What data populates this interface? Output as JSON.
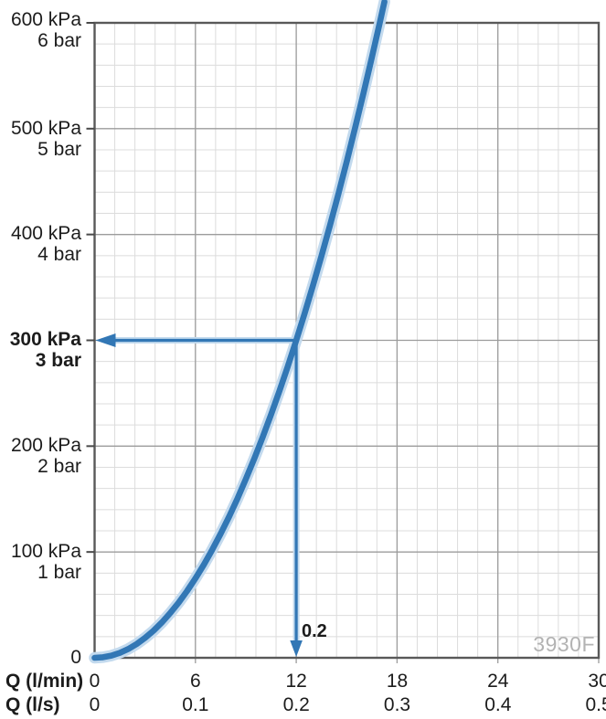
{
  "chart_data": {
    "type": "line",
    "title": "",
    "watermark": "3930F",
    "x_axis": {
      "title_primary": "Q (l/min)",
      "title_secondary": "Q (l/s)",
      "range": [
        0,
        30
      ],
      "major_step": 6,
      "minor_step": 1.2,
      "ticks_primary": [
        "0",
        "6",
        "12",
        "18",
        "24",
        "30"
      ],
      "ticks_secondary": [
        "0",
        "0.1",
        "0.2",
        "0.3",
        "0.4",
        "0.5"
      ]
    },
    "y_axis": {
      "unit_primary": "kPa",
      "unit_secondary": "bar",
      "range": [
        0,
        600
      ],
      "major_step": 100,
      "minor_step": 20,
      "labels": [
        {
          "kpa": "600 kPa",
          "bar": "6 bar",
          "value": 600,
          "bold": false
        },
        {
          "kpa": "500 kPa",
          "bar": "5 bar",
          "value": 500,
          "bold": false
        },
        {
          "kpa": "400 kPa",
          "bar": "4 bar",
          "value": 400,
          "bold": false
        },
        {
          "kpa": "300 kPa",
          "bar": "3 bar",
          "value": 300,
          "bold": true
        },
        {
          "kpa": "200 kPa",
          "bar": "2 bar",
          "value": 200,
          "bold": false
        },
        {
          "kpa": "100 kPa",
          "bar": "1 bar",
          "value": 100,
          "bold": false
        },
        {
          "kpa": "0",
          "bar": "",
          "value": 0,
          "bold": false
        }
      ]
    },
    "series": [
      {
        "name": "pressure-loss-curve",
        "color": "#3277b5",
        "halo_color": "#c3daee",
        "model": "P[kPa] = 300 * (Q[l/min] / 12)^2",
        "points_q_lmin": [
          0,
          0.5,
          1,
          1.5,
          2,
          2.5,
          3,
          3.5,
          4,
          4.5,
          5,
          5.5,
          6,
          6.5,
          7,
          7.5,
          8,
          8.5,
          9,
          9.5,
          10,
          10.5,
          11,
          11.5,
          12,
          12.5,
          13,
          13.5,
          14,
          14.5,
          15,
          15.5,
          16,
          16.5,
          17,
          17.25
        ],
        "points_p_kpa": [
          0,
          0.5,
          2.1,
          4.7,
          8.3,
          13,
          18.8,
          25.5,
          33.3,
          42.2,
          52.1,
          63,
          75,
          88,
          102.1,
          117.2,
          133.3,
          150.5,
          168.8,
          188,
          208.3,
          229.7,
          252.1,
          275.5,
          300,
          325.5,
          352.1,
          379.7,
          408.3,
          438,
          468.8,
          500.5,
          533.3,
          567.2,
          602.1,
          619.9
        ]
      }
    ],
    "annotation": {
      "q_lmin": 12,
      "p_kpa": 300,
      "label": "0.2",
      "arrow_color": "#3277b5"
    },
    "grid": {
      "minor_color": "#dcdcdc",
      "major_color": "#9c9c9c",
      "border_color": "#595959",
      "tick_color": "#4a4a4a"
    }
  }
}
